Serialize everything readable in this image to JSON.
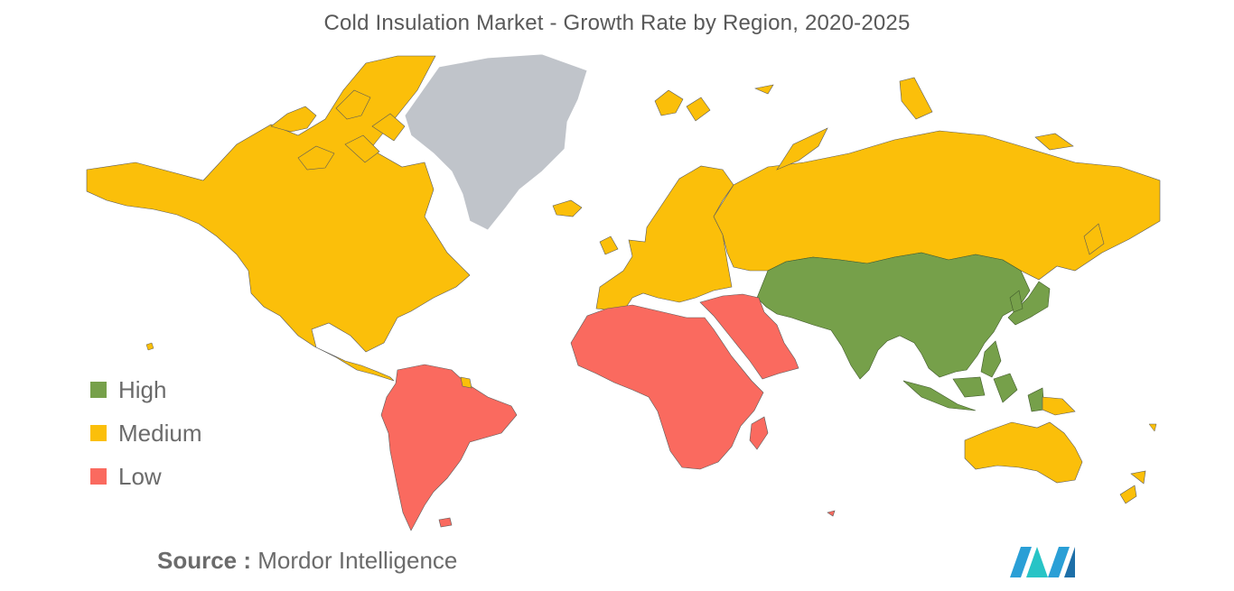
{
  "title": "Cold Insulation Market - Growth Rate by Region, 2020-2025",
  "legend": [
    {
      "label": "High",
      "color": "#76a04a"
    },
    {
      "label": "Medium",
      "color": "#fbbf0a"
    },
    {
      "label": "Low",
      "color": "#fa6a5f"
    }
  ],
  "no_data_color": "#c0c4ca",
  "source": {
    "key": "Source :",
    "value": "Mordor Intelligence"
  },
  "logo_icon": "mordor-intelligence-logo-icon",
  "regions": [
    {
      "name": "North America",
      "level": "Medium"
    },
    {
      "name": "Europe",
      "level": "Medium"
    },
    {
      "name": "Russia",
      "level": "Medium"
    },
    {
      "name": "Australia and New Zealand",
      "level": "Medium"
    },
    {
      "name": "Asia-Pacific",
      "level": "High"
    },
    {
      "name": "South America",
      "level": "Low"
    },
    {
      "name": "Middle East and Africa",
      "level": "Low"
    },
    {
      "name": "Greenland",
      "level": "No data"
    }
  ]
}
